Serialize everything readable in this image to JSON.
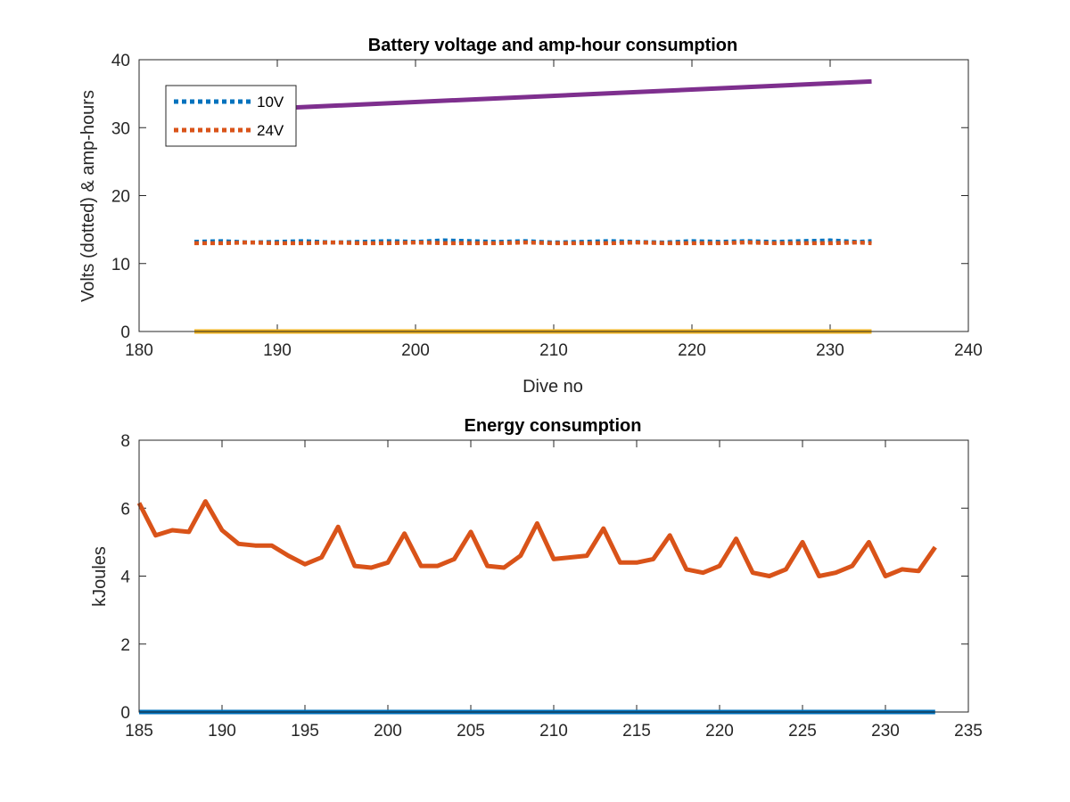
{
  "chart_data": [
    {
      "type": "line",
      "title": "Battery voltage and amp-hour consumption",
      "xlabel": "Dive no",
      "ylabel": "Volts (dotted) & amp-hours",
      "xlim": [
        180,
        240
      ],
      "ylim": [
        0,
        40
      ],
      "xticks": [
        "180",
        "190",
        "200",
        "210",
        "220",
        "230",
        "240"
      ],
      "yticks": [
        "0",
        "10",
        "20",
        "30",
        "40"
      ],
      "grid": false,
      "legend": {
        "placement": "top-left",
        "entries": [
          "10V",
          "24V"
        ]
      },
      "series": [
        {
          "name": "10V",
          "color": "#0072BD",
          "style": "dotted",
          "x": [
            184,
            186,
            188,
            190,
            192,
            194,
            196,
            198,
            200,
            202,
            204,
            206,
            208,
            210,
            212,
            214,
            216,
            218,
            220,
            222,
            224,
            226,
            228,
            230,
            232,
            233
          ],
          "y": [
            13.2,
            13.3,
            13.1,
            13.2,
            13.3,
            13.1,
            13.2,
            13.3,
            13.2,
            13.4,
            13.3,
            13.2,
            13.3,
            13.1,
            13.2,
            13.3,
            13.2,
            13.1,
            13.3,
            13.2,
            13.3,
            13.2,
            13.3,
            13.4,
            13.2,
            13.3
          ]
        },
        {
          "name": "24V",
          "color": "#D95319",
          "style": "dotted",
          "x": [
            184,
            186,
            188,
            190,
            192,
            194,
            196,
            198,
            200,
            202,
            204,
            206,
            208,
            210,
            212,
            214,
            216,
            218,
            220,
            222,
            224,
            226,
            228,
            230,
            232,
            233
          ],
          "y": [
            13.0,
            13.0,
            13.1,
            13.0,
            13.0,
            13.1,
            13.0,
            13.0,
            13.1,
            13.0,
            13.0,
            13.0,
            13.1,
            13.0,
            13.0,
            13.0,
            13.1,
            13.0,
            13.0,
            13.0,
            13.1,
            13.0,
            13.0,
            13.0,
            13.1,
            13.0
          ]
        },
        {
          "color": "#EDB120",
          "style": "solid",
          "x": [
            184,
            233
          ],
          "y": [
            0,
            0
          ]
        },
        {
          "color": "#7E2F8E",
          "style": "solid",
          "x": [
            184,
            233
          ],
          "y": [
            32.3,
            36.8
          ]
        }
      ]
    },
    {
      "type": "line",
      "title": "Energy consumption",
      "xlabel": "",
      "ylabel": "kJoules",
      "xlim": [
        185,
        235
      ],
      "ylim": [
        0,
        8
      ],
      "xticks": [
        "185",
        "190",
        "195",
        "200",
        "205",
        "210",
        "215",
        "220",
        "225",
        "230",
        "235"
      ],
      "yticks": [
        "0",
        "2",
        "4",
        "6",
        "8"
      ],
      "grid": false,
      "series": [
        {
          "color": "#0072BD",
          "style": "solid",
          "x": [
            185,
            233
          ],
          "y": [
            0,
            0
          ]
        },
        {
          "color": "#D95319",
          "style": "solid",
          "x": [
            185,
            186,
            187,
            188,
            189,
            190,
            191,
            192,
            193,
            194,
            195,
            196,
            197,
            198,
            199,
            200,
            201,
            202,
            203,
            204,
            205,
            206,
            207,
            208,
            209,
            210,
            211,
            212,
            213,
            214,
            215,
            216,
            217,
            218,
            219,
            220,
            221,
            222,
            223,
            224,
            225,
            226,
            227,
            228,
            229,
            230,
            231,
            232,
            233
          ],
          "y": [
            6.15,
            5.2,
            5.35,
            5.3,
            6.2,
            5.35,
            4.95,
            4.9,
            4.9,
            4.6,
            4.35,
            4.55,
            5.45,
            4.3,
            4.25,
            4.4,
            5.25,
            4.3,
            4.3,
            4.5,
            5.3,
            4.3,
            4.25,
            4.6,
            5.55,
            4.5,
            4.55,
            4.6,
            5.4,
            4.4,
            4.4,
            4.5,
            5.2,
            4.2,
            4.1,
            4.3,
            5.1,
            4.1,
            4.0,
            4.2,
            5.0,
            4.0,
            4.1,
            4.3,
            5.0,
            4.0,
            4.2,
            4.15,
            4.85
          ]
        }
      ]
    }
  ]
}
